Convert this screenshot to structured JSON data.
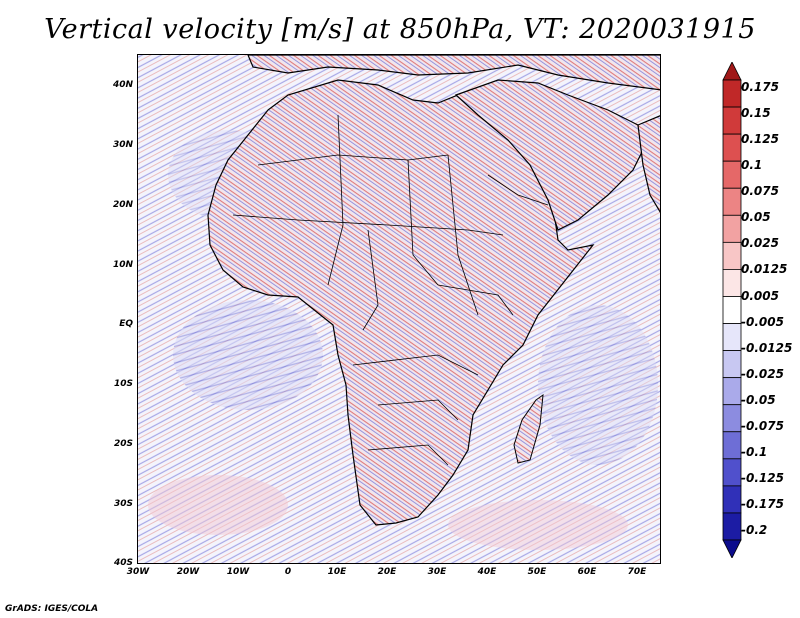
{
  "title": "Vertical velocity [m/s] at 850hPa, VT: 2020031915",
  "footer": "GrADS: IGES/COLA",
  "map": {
    "variable": "Vertical velocity",
    "units": "m/s",
    "level": "850hPa",
    "valid_time": "2020031915",
    "region": "Africa",
    "lat_labels": [
      "40N",
      "30N",
      "20N",
      "10N",
      "EQ",
      "10S",
      "20S",
      "30S",
      "40S"
    ],
    "lon_labels": [
      "30W",
      "20W",
      "10W",
      "0",
      "10E",
      "20E",
      "30E",
      "40E",
      "50E",
      "60E",
      "70E"
    ]
  },
  "colorbar": {
    "labels": [
      "0.175",
      "0.15",
      "0.125",
      "0.1",
      "0.075",
      "0.05",
      "0.025",
      "0.0125",
      "0.005",
      "-0.005",
      "-0.0125",
      "-0.025",
      "-0.05",
      "-0.075",
      "-0.1",
      "-0.125",
      "-0.175",
      "-0.2"
    ],
    "colors": [
      "#a01818",
      "#c02828",
      "#d03a3a",
      "#dd5050",
      "#e56868",
      "#ec8484",
      "#f2a2a2",
      "#f8c6c6",
      "#fce6e6",
      "#ffffff",
      "#e6e6fa",
      "#c8c8f2",
      "#aaaaea",
      "#8c8ce0",
      "#6e6ed6",
      "#5050cc",
      "#3030b8",
      "#1c1ca4",
      "#0c0c8c"
    ]
  }
}
